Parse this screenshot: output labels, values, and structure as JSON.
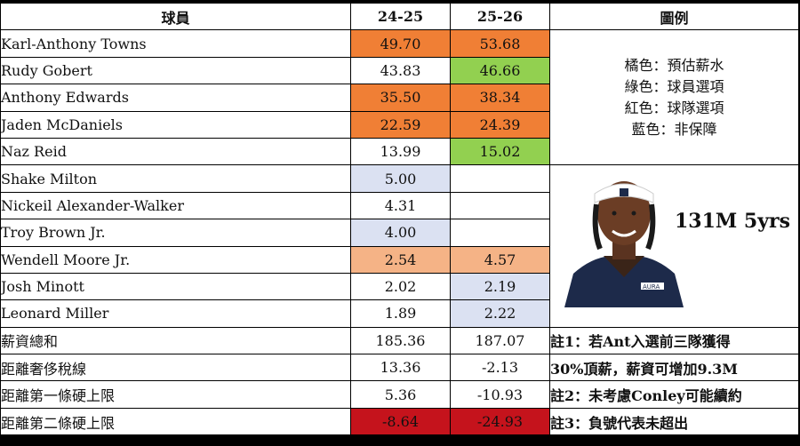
{
  "headers": {
    "player": "球員",
    "y1": "24-25",
    "y2": "25-26",
    "legend": "圖例"
  },
  "rows": [
    {
      "name": "Karl-Anthony Towns",
      "y1": "49.70",
      "y2": "53.68"
    },
    {
      "name": "Rudy Gobert",
      "y1": "43.83",
      "y2": "46.66"
    },
    {
      "name": "Anthony Edwards",
      "y1": "35.50",
      "y2": "38.34"
    },
    {
      "name": "Jaden McDaniels",
      "y1": "22.59",
      "y2": "24.39"
    },
    {
      "name": "Naz Reid",
      "y1": "13.99",
      "y2": "15.02"
    },
    {
      "name": "Shake Milton",
      "y1": "5.00",
      "y2": ""
    },
    {
      "name": "Nickeil Alexander-Walker",
      "y1": "4.31",
      "y2": ""
    },
    {
      "name": "Troy Brown Jr.",
      "y1": "4.00",
      "y2": ""
    },
    {
      "name": "Wendell Moore Jr.",
      "y1": "2.54",
      "y2": "4.57"
    },
    {
      "name": "Josh Minott",
      "y1": "2.02",
      "y2": "2.19"
    },
    {
      "name": "Leonard Miller",
      "y1": "1.89",
      "y2": "2.22"
    },
    {
      "name": "薪資總和",
      "y1": "185.36",
      "y2": "187.07"
    },
    {
      "name": "距離奢侈稅線",
      "y1": "13.36",
      "y2": "-2.13"
    },
    {
      "name": "距離第一條硬上限",
      "y1": "5.36",
      "y2": "-10.93"
    },
    {
      "name": "距離第二條硬上限",
      "y1": "-8.64",
      "y2": "-24.93"
    }
  ],
  "legend": {
    "orange": "橘色：預估薪水",
    "green": "綠色：球員選項",
    "red": "紅色：球隊選項",
    "blue": "藍色：非保障"
  },
  "contract_text": "131M 5yrs",
  "jersey_text": "AURA",
  "notes": {
    "n1a": "註1：若Ant入選前三隊獲得",
    "n1b": "30%頂薪，薪資可增加9.3M",
    "n2": "註2：未考慮Conley可能續約",
    "n3": "註3：負號代表未超出"
  },
  "colors": {
    "orange": "#f07f35",
    "green": "#92d050",
    "blue": "#dbe1f2",
    "peach": "#f5b386",
    "red": "#c5131c"
  }
}
